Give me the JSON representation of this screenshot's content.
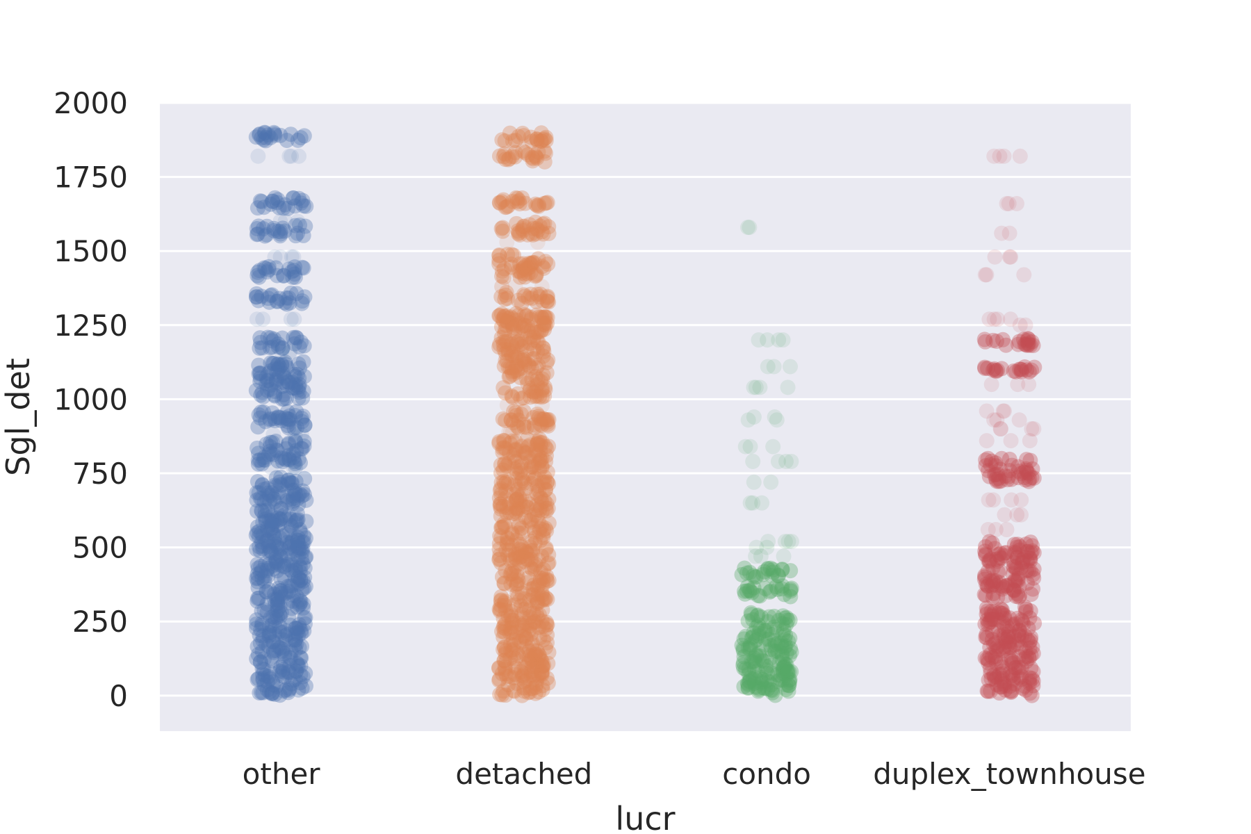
{
  "chart_data": {
    "type": "scatter",
    "subtype": "strip",
    "xlabel": "lucr",
    "ylabel": "Sgl_det",
    "ylim": [
      -120,
      2000
    ],
    "yticks": [
      0,
      250,
      500,
      750,
      1000,
      1250,
      1500,
      1750,
      2000
    ],
    "grid": true,
    "legend": "none",
    "colors": {
      "background": "#eaeaf2",
      "grid": "#ffffff",
      "text": "#262626",
      "other": "#4c72b0",
      "detached": "#dd8452",
      "condo": "#55a868",
      "duplex_townhouse": "#c44e52"
    },
    "categories": [
      "other",
      "detached",
      "condo",
      "duplex_townhouse"
    ],
    "series": [
      {
        "category": "other",
        "color": "#4c72b0",
        "dense_ranges": [
          [
            0,
            740
          ],
          [
            780,
            860
          ],
          [
            900,
            960
          ],
          [
            1000,
            1130
          ],
          [
            1170,
            1210
          ],
          [
            1320,
            1360
          ],
          [
            1410,
            1450
          ],
          [
            1550,
            1590
          ],
          [
            1640,
            1680
          ],
          [
            1870,
            1900
          ]
        ],
        "sparse_values": [
          1820,
          1600,
          1480,
          1270,
          1160,
          880,
          770
        ]
      },
      {
        "category": "detached",
        "color": "#dd8452",
        "dense_ranges": [
          [
            0,
            870
          ],
          [
            900,
            960
          ],
          [
            1000,
            1290
          ],
          [
            1320,
            1360
          ],
          [
            1410,
            1490
          ],
          [
            1550,
            1600
          ],
          [
            1640,
            1680
          ],
          [
            1800,
            1840
          ],
          [
            1870,
            1900
          ]
        ],
        "sparse_values": [
          1380,
          1530,
          980,
          890
        ]
      },
      {
        "category": "condo",
        "color": "#55a868",
        "dense_ranges": [
          [
            0,
            280
          ],
          [
            330,
            370
          ],
          [
            400,
            430
          ]
        ],
        "sparse_values": [
          470,
          500,
          520,
          650,
          720,
          790,
          840,
          930,
          940,
          1040,
          1110,
          1200,
          1580
        ]
      },
      {
        "category": "duplex_townhouse",
        "color": "#c44e52",
        "dense_ranges": [
          [
            0,
            300
          ],
          [
            330,
            520
          ],
          [
            720,
            800
          ],
          [
            1090,
            1110
          ],
          [
            1180,
            1210
          ]
        ],
        "sparse_values": [
          560,
          610,
          660,
          860,
          900,
          930,
          960,
          1050,
          1250,
          1270,
          1420,
          1480,
          1560,
          1660,
          1820
        ]
      }
    ]
  }
}
